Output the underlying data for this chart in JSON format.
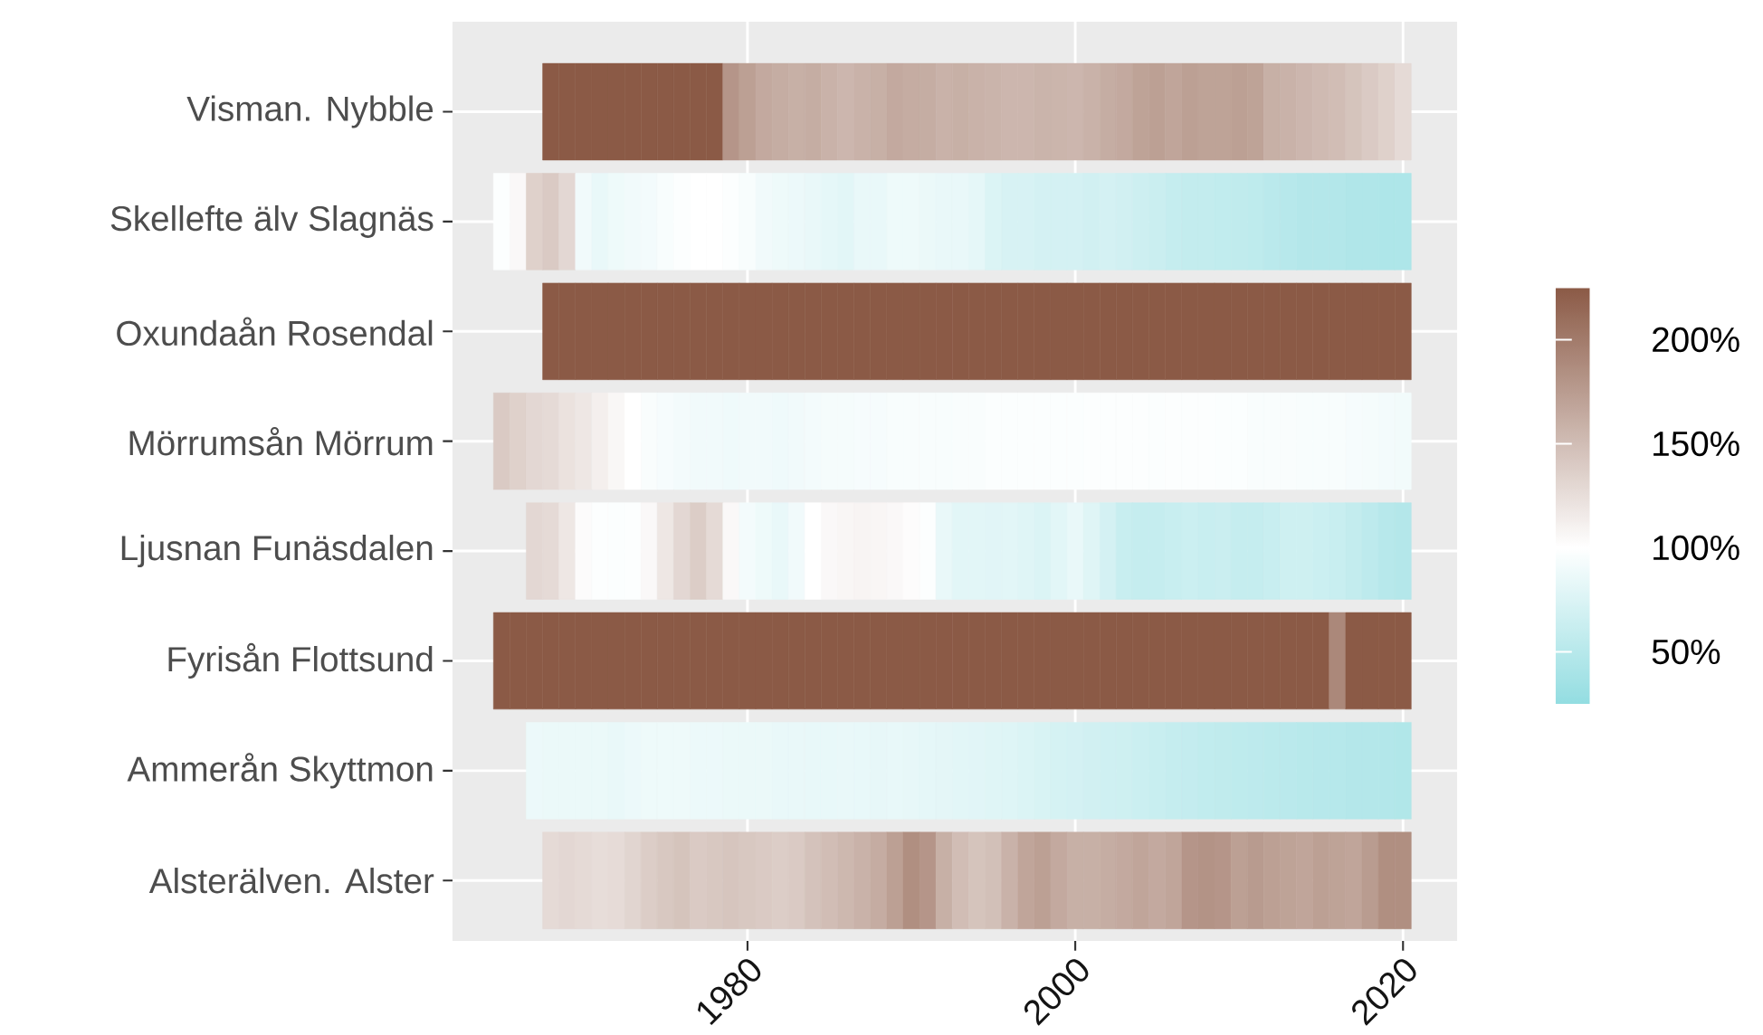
{
  "chart_data": {
    "type": "heatmap",
    "x": [
      1965,
      1966,
      1967,
      1968,
      1969,
      1970,
      1971,
      1972,
      1973,
      1974,
      1975,
      1976,
      1977,
      1978,
      1979,
      1980,
      1981,
      1982,
      1983,
      1984,
      1985,
      1986,
      1987,
      1988,
      1989,
      1990,
      1991,
      1992,
      1993,
      1994,
      1995,
      1996,
      1997,
      1998,
      1999,
      2000,
      2001,
      2002,
      2003,
      2004,
      2005,
      2006,
      2007,
      2008,
      2009,
      2010,
      2011,
      2012,
      2013,
      2014,
      2015,
      2016,
      2017,
      2018,
      2019,
      2020
    ],
    "y_categories": [
      "Visman. Nybble",
      "Skellefte älv Slagnäs",
      "Oxundaån Rosendal",
      "Mörrumsån Mörrum",
      "Ljusnan Funäsdalen",
      "Fyrisån Flottsund",
      "Ammerån Skyttmon",
      "Alsterälven. Alster"
    ],
    "cells": [
      [
        null,
        null,
        null,
        225,
        225,
        225,
        225,
        225,
        225,
        225,
        225,
        225,
        225,
        225,
        180,
        172,
        165,
        162,
        160,
        162,
        158,
        155,
        158,
        160,
        165,
        163,
        162,
        158,
        160,
        158,
        157,
        155,
        155,
        157,
        156,
        155,
        158,
        162,
        165,
        170,
        172,
        168,
        172,
        170,
        170,
        172,
        170,
        160,
        158,
        155,
        152,
        150,
        145,
        140,
        135,
        128
      ],
      [
        98,
        105,
        135,
        140,
        130,
        90,
        85,
        88,
        90,
        92,
        95,
        98,
        100,
        100,
        98,
        95,
        90,
        88,
        87,
        85,
        82,
        80,
        85,
        85,
        88,
        88,
        86,
        85,
        85,
        82,
        75,
        72,
        72,
        70,
        70,
        70,
        68,
        70,
        68,
        65,
        63,
        60,
        58,
        58,
        57,
        56,
        55,
        52,
        50,
        48,
        48,
        47,
        45,
        45,
        44,
        44
      ],
      [
        null,
        null,
        null,
        225,
        225,
        225,
        225,
        225,
        225,
        225,
        225,
        225,
        225,
        225,
        225,
        225,
        225,
        225,
        225,
        225,
        225,
        225,
        225,
        225,
        225,
        225,
        225,
        225,
        225,
        225,
        225,
        225,
        225,
        225,
        225,
        225,
        225,
        225,
        225,
        225,
        225,
        225,
        225,
        225,
        225,
        225,
        225,
        225,
        225,
        225,
        225,
        225,
        225,
        225,
        225,
        225
      ],
      [
        140,
        135,
        130,
        128,
        122,
        118,
        112,
        106,
        100,
        96,
        94,
        92,
        90,
        90,
        89,
        90,
        90,
        89,
        90,
        92,
        93,
        93,
        94,
        94,
        95,
        95,
        95,
        95,
        96,
        96,
        97,
        97,
        97,
        97,
        97,
        97,
        98,
        98,
        98,
        98,
        97,
        98,
        98,
        98,
        97,
        97,
        96,
        96,
        96,
        95,
        95,
        95,
        94,
        93,
        92,
        91
      ],
      [
        null,
        null,
        130,
        128,
        118,
        103,
        98,
        97,
        98,
        105,
        118,
        130,
        138,
        128,
        105,
        92,
        88,
        85,
        90,
        100,
        105,
        107,
        108,
        107,
        105,
        102,
        98,
        85,
        80,
        80,
        79,
        80,
        78,
        75,
        80,
        85,
        78,
        70,
        62,
        60,
        60,
        62,
        64,
        62,
        63,
        60,
        60,
        62,
        66,
        66,
        64,
        62,
        58,
        54,
        50,
        48
      ],
      [
        225,
        225,
        225,
        225,
        225,
        225,
        225,
        225,
        225,
        225,
        225,
        225,
        225,
        225,
        225,
        225,
        225,
        225,
        225,
        225,
        225,
        225,
        225,
        225,
        225,
        225,
        225,
        225,
        225,
        225,
        225,
        225,
        225,
        225,
        225,
        225,
        225,
        225,
        225,
        225,
        225,
        225,
        225,
        225,
        225,
        225,
        225,
        225,
        225,
        225,
        225,
        190,
        225,
        225,
        225,
        225
      ],
      [
        null,
        null,
        87,
        86,
        86,
        86,
        86,
        85,
        87,
        88,
        88,
        88,
        87,
        87,
        86,
        86,
        86,
        85,
        85,
        84,
        84,
        85,
        84,
        83,
        84,
        83,
        82,
        81,
        80,
        79,
        78,
        77,
        75,
        73,
        71,
        70,
        68,
        67,
        66,
        64,
        62,
        60,
        59,
        57,
        56,
        55,
        54,
        53,
        52,
        51,
        50,
        49,
        48,
        48,
        47,
        46
      ],
      [
        null,
        null,
        null,
        128,
        130,
        128,
        126,
        127,
        132,
        138,
        142,
        145,
        140,
        142,
        144,
        142,
        140,
        138,
        140,
        146,
        150,
        154,
        158,
        163,
        172,
        185,
        180,
        160,
        150,
        145,
        148,
        158,
        168,
        172,
        165,
        160,
        160,
        162,
        165,
        168,
        165,
        168,
        180,
        182,
        180,
        172,
        176,
        172,
        170,
        168,
        172,
        170,
        168,
        175,
        185,
        185
      ]
    ],
    "xlim": [
      1962,
      2023.3
    ],
    "xticks": [
      1980,
      2000,
      2020
    ],
    "clim": [
      25,
      225
    ],
    "cticks": [
      {
        "value": 50,
        "label": "50%"
      },
      {
        "value": 100,
        "label": "100%"
      },
      {
        "value": 150,
        "label": "150%"
      },
      {
        "value": 200,
        "label": "200%"
      }
    ],
    "grid": true
  }
}
